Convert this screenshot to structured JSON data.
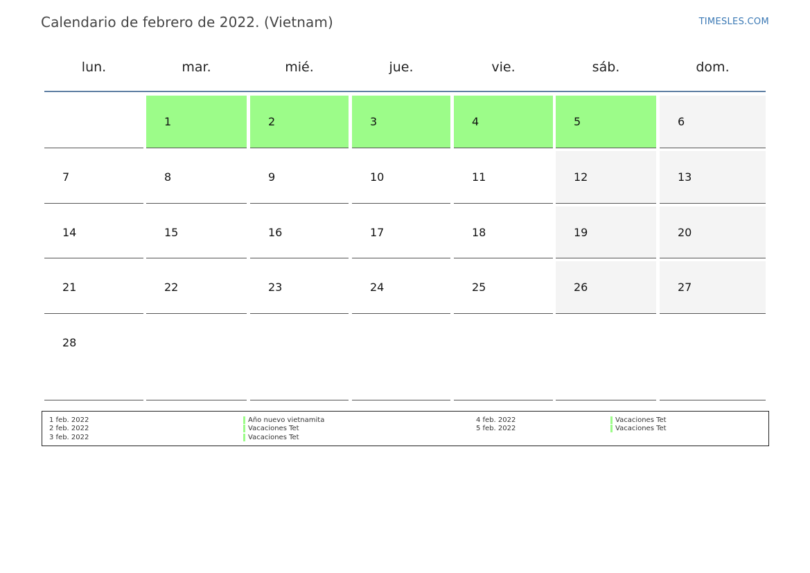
{
  "header": {
    "title": "Calendario de febrero de 2022. (Vietnam)",
    "brand": "TIMESLES.COM"
  },
  "colors": {
    "holiday": "#9cfc89",
    "weekend": "#f4f4f4",
    "header_rule": "#5f7fa3",
    "brand": "#3a78b4"
  },
  "weekdays": [
    "lun.",
    "mar.",
    "mié.",
    "jue.",
    "vie.",
    "sáb.",
    "dom."
  ],
  "weeks": [
    [
      null,
      "1",
      "2",
      "3",
      "4",
      "5",
      "6"
    ],
    [
      "7",
      "8",
      "9",
      "10",
      "11",
      "12",
      "13"
    ],
    [
      "14",
      "15",
      "16",
      "17",
      "18",
      "19",
      "20"
    ],
    [
      "21",
      "22",
      "23",
      "24",
      "25",
      "26",
      "27"
    ],
    [
      "28",
      null,
      null,
      null,
      null,
      null,
      null
    ]
  ],
  "holiday_days": [
    "1",
    "2",
    "3",
    "4",
    "5"
  ],
  "weekend_days": [
    "6",
    "12",
    "13",
    "19",
    "20",
    "26",
    "27"
  ],
  "legend": [
    {
      "date": "1 feb. 2022",
      "name": "Año nuevo vietnamita"
    },
    {
      "date": "2 feb. 2022",
      "name": "Vacaciones Tet"
    },
    {
      "date": "3 feb. 2022",
      "name": "Vacaciones Tet"
    },
    {
      "date": "4 feb. 2022",
      "name": "Vacaciones Tet"
    },
    {
      "date": "5 feb. 2022",
      "name": "Vacaciones Tet"
    }
  ]
}
